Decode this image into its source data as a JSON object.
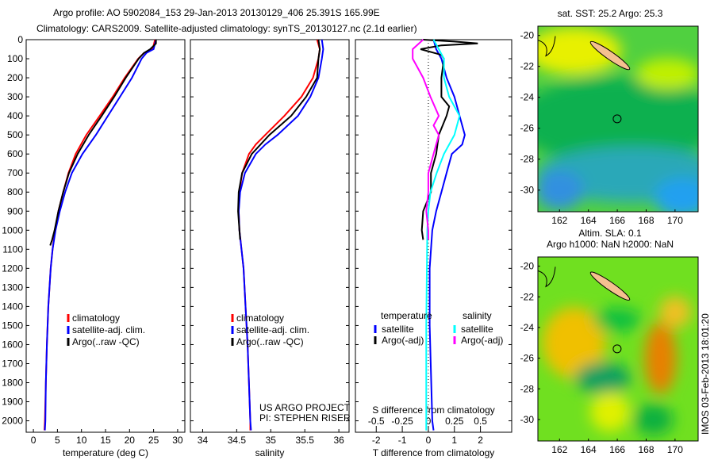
{
  "chart_data": {
    "type": "line",
    "title": [
      "Argo profile: AO 5902084_153 29-Jan-2013 20130129_406 25.391S 165.99E",
      "Climatology: CARS2009. Satellite-adjusted climatology: synTS_20130127.nc (2.1d earlier)"
    ],
    "depth_axis": {
      "ylim": [
        0,
        2060
      ],
      "ticks": [
        0,
        100,
        200,
        300,
        400,
        500,
        600,
        700,
        800,
        900,
        1000,
        1100,
        1200,
        1300,
        1400,
        1500,
        1600,
        1700,
        1800,
        1900,
        2000
      ],
      "reversed": true
    },
    "panels": [
      {
        "id": "temperature",
        "xlabel": "temperature (deg C)",
        "xlim": [
          -1.5,
          31.5
        ],
        "xticks": [
          0,
          5,
          10,
          15,
          20,
          25,
          30
        ],
        "legend": [
          "climatology",
          "satellite-adj. clim.",
          "Argo(..raw -QC)"
        ],
        "legend_colors": [
          "#ff0000",
          "#0000ff",
          "#000000"
        ],
        "series": [
          {
            "name": "climatology",
            "color": "#ff0000",
            "depth": [
              0,
              50,
              70,
              100,
              200,
              300,
              400,
              500,
              600,
              700,
              800,
              900,
              1000,
              1100,
              1200,
              1400,
              1600,
              1800,
              2000,
              2050
            ],
            "values": [
              25.3,
              24.8,
              23,
              21.8,
              19,
              16.5,
              13.8,
              11,
              8.8,
              7.3,
              6.2,
              5.2,
              4.5,
              4,
              3.6,
              3.1,
              2.8,
              2.6,
              2.4,
              2.3
            ]
          },
          {
            "name": "satellite-adj. clim.",
            "color": "#0000ff",
            "depth": [
              0,
              50,
              70,
              100,
              200,
              300,
              400,
              500,
              600,
              700,
              800,
              900,
              1000,
              1100,
              1200,
              1400,
              1600,
              1800,
              2000,
              2050
            ],
            "values": [
              25.5,
              25,
              23.5,
              22.5,
              20.5,
              18,
              15.5,
              13,
              10.2,
              8,
              6.6,
              5.5,
              4.6,
              4,
              3.6,
              3.1,
              2.8,
              2.6,
              2.5,
              2.4
            ]
          },
          {
            "name": "Argo(..raw -QC)",
            "color": "#000000",
            "depth": [
              0,
              20,
              50,
              70,
              100,
              200,
              300,
              400,
              500,
              600,
              700,
              800,
              900,
              1000,
              1050,
              1080
            ],
            "values": [
              25.5,
              25.5,
              24.3,
              23,
              21.9,
              19.2,
              16.8,
              14.2,
              11.5,
              9.2,
              7.4,
              6.2,
              5.2,
              4.4,
              3.9,
              3.5
            ]
          }
        ]
      },
      {
        "id": "salinity",
        "xlabel": "salinity",
        "xlim": [
          33.82,
          36.15
        ],
        "xticks": [
          34,
          34.5,
          35,
          35.5,
          36
        ],
        "legend": [
          "climatology",
          "satellite-adj. clim.",
          "Argo(..raw -QC)"
        ],
        "legend_colors": [
          "#ff0000",
          "#0000ff",
          "#000000"
        ],
        "credit": [
          "US ARGO PROJECT",
          "PI: STEPHEN RISER"
        ],
        "series": [
          {
            "name": "climatology",
            "color": "#ff0000",
            "depth": [
              0,
              50,
              100,
              200,
              300,
              400,
              500,
              550,
              600,
              700,
              800,
              900,
              1000,
              1100,
              1200,
              1400,
              1600,
              1800,
              2000,
              2050
            ],
            "values": [
              35.68,
              35.72,
              35.7,
              35.62,
              35.45,
              35.2,
              34.92,
              34.78,
              34.68,
              34.58,
              34.54,
              34.53,
              34.54,
              34.57,
              34.6,
              34.63,
              34.66,
              34.68,
              34.7,
              34.7
            ]
          },
          {
            "name": "satellite-adj. clim.",
            "color": "#0000ff",
            "depth": [
              0,
              50,
              100,
              200,
              300,
              400,
              500,
              550,
              600,
              700,
              800,
              900,
              1000,
              1100,
              1200,
              1400,
              1600,
              1800,
              2000,
              2050
            ],
            "values": [
              35.75,
              35.77,
              35.75,
              35.7,
              35.58,
              35.4,
              35.1,
              34.92,
              34.78,
              34.62,
              34.55,
              34.53,
              34.54,
              34.57,
              34.6,
              34.63,
              34.66,
              34.68,
              34.7,
              34.71
            ]
          },
          {
            "name": "Argo(..raw -QC)",
            "color": "#000000",
            "depth": [
              0,
              50,
              100,
              200,
              300,
              400,
              500,
              600,
              700,
              800,
              900,
              1000,
              1050
            ],
            "values": [
              35.7,
              35.72,
              35.7,
              35.68,
              35.52,
              35.3,
              34.98,
              34.72,
              34.58,
              34.53,
              34.52,
              34.54,
              34.55
            ]
          }
        ]
      },
      {
        "id": "difference",
        "xlabel": "T difference from climatology",
        "xlim": [
          -2.8,
          3.2
        ],
        "xticks": [
          -2,
          -1,
          0,
          1,
          2
        ],
        "x2label": "S difference from climatology",
        "x2lim": [
          -0.7,
          0.8
        ],
        "x2ticks": [
          -0.5,
          -0.25,
          0,
          0.25,
          0.5
        ],
        "x2ticklabels": [
          "-0.5",
          "-0.25",
          "0",
          "0.25",
          "0.5"
        ],
        "legend_headers": [
          "temperature",
          "salinity"
        ],
        "legend": [
          "satellite",
          "Argo(-adj)",
          "satellite",
          "Argo(-adj)"
        ],
        "legend_colors": [
          "#0000ff",
          "#000000",
          "#00ffff",
          "#ff00ff"
        ],
        "series": [
          {
            "name": "T satellite",
            "axis": "T",
            "color": "#0000ff",
            "depth": [
              0,
              50,
              100,
              200,
              300,
              400,
              500,
              550,
              600,
              700,
              800,
              900,
              1000,
              1200,
              1500,
              2000,
              2050
            ],
            "values": [
              0.2,
              0.3,
              0.5,
              0.7,
              1.0,
              1.2,
              1.4,
              1.3,
              0.9,
              0.7,
              0.5,
              0.3,
              0.15,
              0.05,
              0.05,
              0.15,
              0.2
            ]
          },
          {
            "name": "T Argo(-adj)",
            "axis": "T",
            "color": "#000000",
            "depth": [
              0,
              10,
              20,
              30,
              50,
              80,
              100,
              200,
              300,
              350,
              400,
              500,
              600,
              700,
              800,
              900,
              1000,
              1050
            ],
            "values": [
              -0.2,
              1.0,
              1.9,
              0.5,
              -0.3,
              0.5,
              0.6,
              0.5,
              0.5,
              0.8,
              0.7,
              0.4,
              0.3,
              0.1,
              0.1,
              -0.2,
              -0.25,
              -0.2
            ]
          },
          {
            "name": "S satellite",
            "axis": "S",
            "color": "#00ffff",
            "depth": [
              0,
              50,
              100,
              200,
              300,
              400,
              500,
              600,
              700,
              800,
              900,
              1000,
              1500,
              2000,
              2050
            ],
            "values": [
              0.05,
              0.1,
              0.15,
              0.15,
              0.2,
              0.3,
              0.25,
              0.15,
              0.08,
              0.02,
              0.0,
              -0.01,
              -0.02,
              -0.02,
              -0.02
            ]
          },
          {
            "name": "S Argo(-adj)",
            "axis": "S",
            "color": "#ff00ff",
            "depth": [
              0,
              50,
              100,
              150,
              200,
              300,
              400,
              450,
              500,
              600,
              700,
              800,
              900,
              1000,
              1050
            ],
            "values": [
              -0.05,
              -0.15,
              -0.15,
              -0.1,
              -0.05,
              0.02,
              0.1,
              0.05,
              0.1,
              0.05,
              0.0,
              0.0,
              -0.02,
              0.0,
              0.0
            ]
          }
        ]
      }
    ],
    "maps": [
      {
        "id": "sst-map",
        "title": [
          "sat. SST: 25.2 Argo: 25.3"
        ],
        "xticks": [
          162,
          164,
          166,
          168,
          170
        ],
        "yticks": [
          -20,
          -22,
          -24,
          -26,
          -28,
          -30
        ],
        "xlim": [
          160.5,
          171.6
        ],
        "ylim": [
          -31.4,
          -19.4
        ],
        "marker": {
          "lon": 165.99,
          "lat": -25.391
        }
      },
      {
        "id": "sla-map",
        "title": [
          "Altim. SLA: 0.1",
          "Argo h1000: NaN h2000: NaN"
        ],
        "xticks": [
          162,
          164,
          166,
          168,
          170
        ],
        "yticks": [
          -20,
          -22,
          -24,
          -26,
          -28,
          -30
        ],
        "xlim": [
          160.5,
          171.6
        ],
        "ylim": [
          -31.4,
          -19.4
        ],
        "marker": {
          "lon": 165.99,
          "lat": -25.391
        }
      }
    ],
    "stamp": "IMOS 03-Feb-2013 18:01:20"
  }
}
